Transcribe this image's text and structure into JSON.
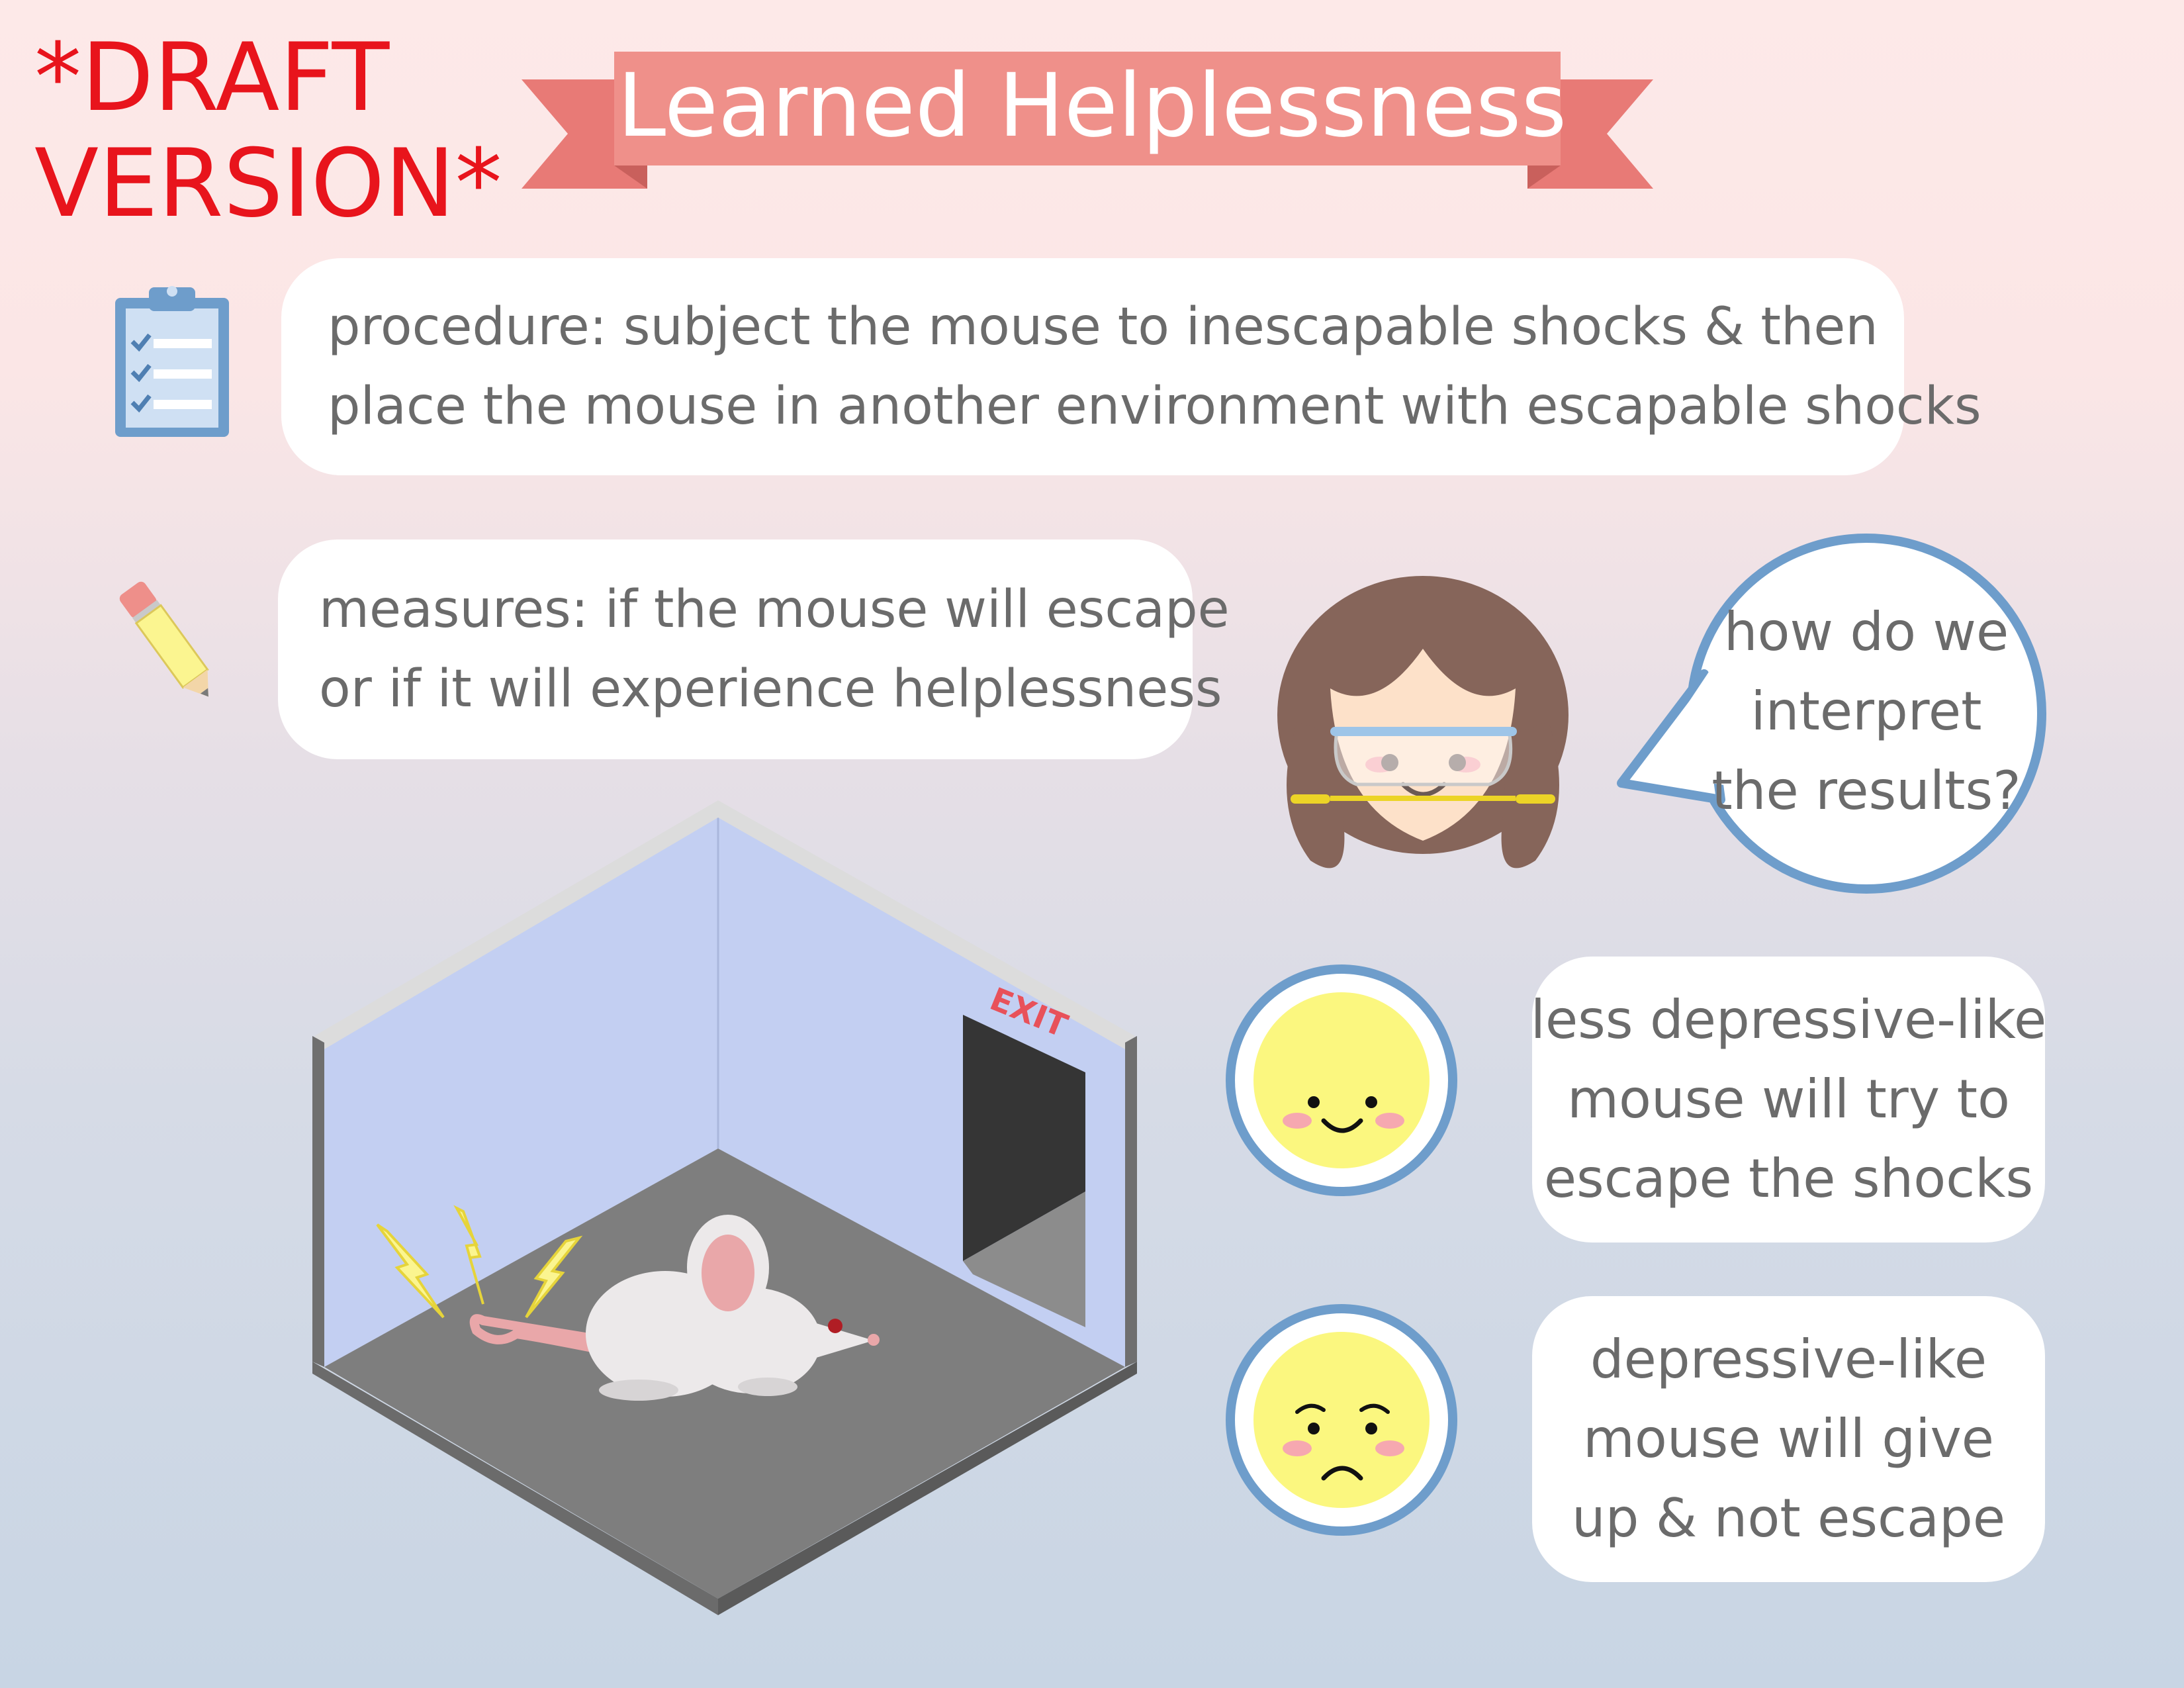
{
  "draft_note": [
    "*DRAFT",
    "VERSION*"
  ],
  "title": "Learned Helplessness",
  "procedure": {
    "lines": [
      "procedure: subject the mouse to inescapable shocks & then",
      "place the mouse in another environment with escapable shocks"
    ]
  },
  "measures": {
    "lines": [
      "measures: if the mouse will escape",
      "or if it will experience helplessness"
    ]
  },
  "scientist_question": {
    "lines": [
      "how do we",
      "interpret",
      "the results?"
    ]
  },
  "outcome_less_depressive": {
    "lines": [
      "less depressive-like",
      "mouse will try to",
      "escape the shocks"
    ]
  },
  "outcome_depressive": {
    "lines": [
      "depressive-like",
      "mouse will give",
      "up & not escape"
    ]
  },
  "cage": {
    "exit_sign": "EXIT"
  },
  "colors": {
    "draft_red": "#e8141c",
    "banner": "#ef908a",
    "banner_dark": "#e87a76",
    "text_gray": "#6b6b6b",
    "accent_blue": "#6e9dcb",
    "smiley_yellow": "#fbf77f",
    "wall_blue": "#c3cff2",
    "floor_gray": "#7e7e7e"
  },
  "icons": [
    "clipboard-icon",
    "pencil-icon",
    "scientist-avatar",
    "happy-face-icon",
    "sad-face-icon",
    "lightning-icon",
    "mouse-illustration"
  ]
}
